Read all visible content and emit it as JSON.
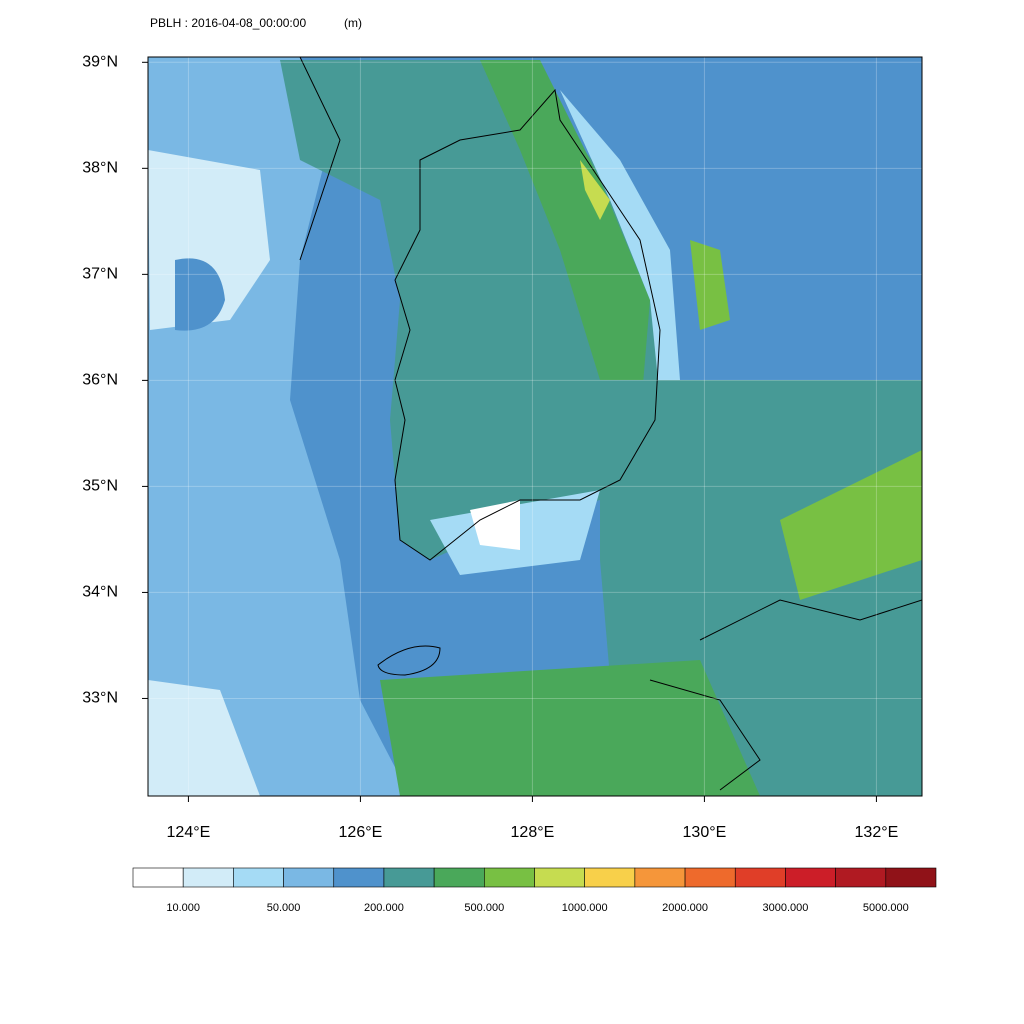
{
  "header": {
    "title": "PBLH : 2016-04-08_00:00:00",
    "units": "(m)"
  },
  "map": {
    "xlim": [
      123.53,
      132.53
    ],
    "ylim": [
      32.08,
      39.05
    ],
    "lat_ticks": [
      {
        "value": 39,
        "label": "39°N"
      },
      {
        "value": 38,
        "label": "38°N"
      },
      {
        "value": 37,
        "label": "37°N"
      },
      {
        "value": 36,
        "label": "36°N"
      },
      {
        "value": 35,
        "label": "35°N"
      },
      {
        "value": 34,
        "label": "34°N"
      },
      {
        "value": 33,
        "label": "33°N"
      }
    ],
    "lon_ticks": [
      {
        "value": 124,
        "label": "124°E"
      },
      {
        "value": 126,
        "label": "126°E"
      },
      {
        "value": 128,
        "label": "128°E"
      },
      {
        "value": 130,
        "label": "130°E"
      },
      {
        "value": 132,
        "label": "132°E"
      }
    ],
    "grid": true
  },
  "colorbar": {
    "colors": [
      "#ffffff",
      "#d2ecf8",
      "#a5dbf5",
      "#7ab8e4",
      "#4f92cc",
      "#479a96",
      "#4aa85a",
      "#78c043",
      "#c6dc50",
      "#f8d04a",
      "#f5963a",
      "#ee6a2c",
      "#e03e28",
      "#cc1e28",
      "#b01a22",
      "#901218"
    ],
    "labels": [
      "10.000",
      "50.000",
      "200.000",
      "500.000",
      "1000.000",
      "2000.000",
      "3000.000",
      "5000.000"
    ]
  }
}
